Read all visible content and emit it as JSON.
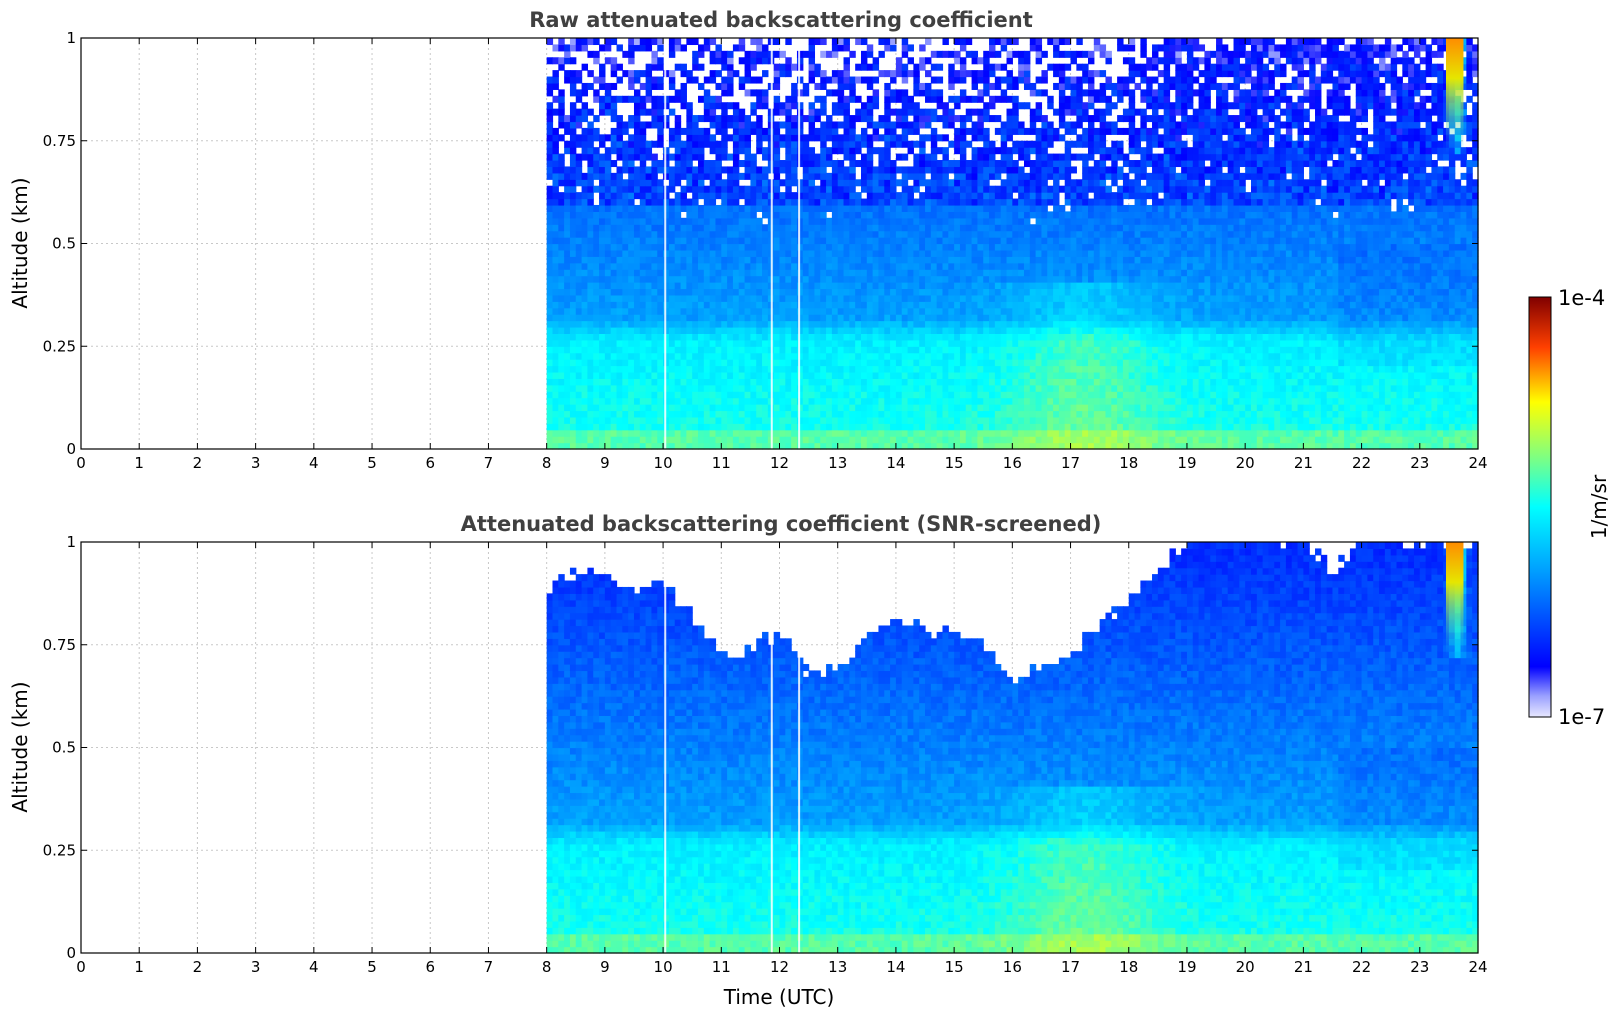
{
  "chart_data": [
    {
      "type": "heatmap",
      "title": "Raw attenuated backscattering coefficient",
      "xlabel": "",
      "ylabel": "Altitude (km)",
      "xlim": [
        0,
        24
      ],
      "ylim": [
        0,
        1
      ],
      "x_ticks": [
        "0",
        "1",
        "2",
        "3",
        "4",
        "5",
        "6",
        "7",
        "8",
        "9",
        "10",
        "11",
        "12",
        "13",
        "14",
        "15",
        "16",
        "17",
        "18",
        "19",
        "20",
        "21",
        "22",
        "23",
        "24"
      ],
      "y_ticks": [
        "0",
        "0.25",
        "0.5",
        "0.75",
        "1"
      ],
      "grid": true,
      "data_start_time": 8,
      "data_end_time": 24,
      "screened": false
    },
    {
      "type": "heatmap",
      "title": "Attenuated backscattering coefficient (SNR-screened)",
      "xlabel": "Time (UTC)",
      "ylabel": "Altitude (km)",
      "xlim": [
        0,
        24
      ],
      "ylim": [
        0,
        1
      ],
      "x_ticks": [
        "0",
        "1",
        "2",
        "3",
        "4",
        "5",
        "6",
        "7",
        "8",
        "9",
        "10",
        "11",
        "12",
        "13",
        "14",
        "15",
        "16",
        "17",
        "18",
        "19",
        "20",
        "21",
        "22",
        "23",
        "24"
      ],
      "y_ticks": [
        "0",
        "0.25",
        "0.5",
        "0.75",
        "1"
      ],
      "grid": true,
      "data_start_time": 8,
      "data_end_time": 24,
      "screened": true
    }
  ],
  "colorbar": {
    "label": "1/m/sr",
    "max_label": "1e-4",
    "min_label": "1e-7",
    "colormap": "jet",
    "scale": "log"
  }
}
